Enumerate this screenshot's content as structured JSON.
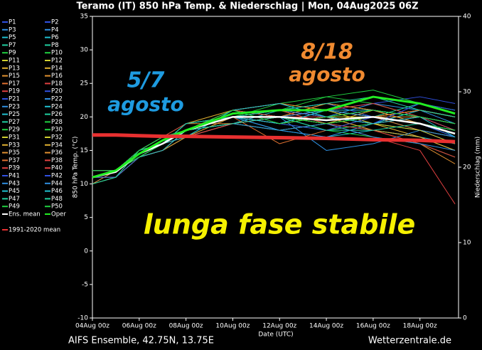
{
  "chart_data": {
    "type": "line",
    "title": "Teramo  (IT)  850 hPa Temp. & Niederschlag | Mon, 04Aug2025 06Z",
    "y_label": "850 hPa Temp. (°C)",
    "y2_label": "Niederschlag (mm)",
    "x_label": "Date (UTC)",
    "footer_left": "AIFS Ensemble, 42.75N, 13.75E",
    "footer_right": "Wetterzentrale.de",
    "annotations": [
      {
        "text": "5/7",
        "color": "#1e9be0"
      },
      {
        "text": "agosto",
        "color": "#1e9be0"
      },
      {
        "text": "8/18",
        "color": "#f08a30"
      },
      {
        "text": "agosto",
        "color": "#f08a30"
      },
      {
        "text": "lunga fase stabile",
        "color": "#f5f000"
      }
    ],
    "xlim": [
      0,
      15.65
    ],
    "ylim": [
      -10,
      35
    ],
    "y2lim": [
      0,
      40
    ],
    "xticks": [
      {
        "value": 0,
        "label": "04Aug 00z"
      },
      {
        "value": 2,
        "label": "06Aug 00z"
      },
      {
        "value": 4,
        "label": "08Aug 00z"
      },
      {
        "value": 6,
        "label": "10Aug 00z"
      },
      {
        "value": 8,
        "label": "12Aug 00z"
      },
      {
        "value": 10,
        "label": "14Aug 00z"
      },
      {
        "value": 12,
        "label": "16Aug 00z"
      },
      {
        "value": 14,
        "label": "18Aug 00z"
      }
    ],
    "yticks": [
      -10,
      -5,
      0,
      5,
      10,
      15,
      20,
      25,
      30,
      35
    ],
    "y2ticks": [
      0,
      10,
      20,
      30,
      40
    ],
    "x": [
      0,
      1,
      2,
      3,
      4,
      6,
      8,
      10,
      12,
      14,
      15.5
    ],
    "series": [
      {
        "name": "P1",
        "color": "#3050e0",
        "values": [
          11,
          12,
          15,
          16,
          18,
          20,
          21,
          20,
          19,
          20,
          18
        ]
      },
      {
        "name": "P2",
        "color": "#3050e0",
        "values": [
          11,
          12,
          14,
          15,
          17,
          19,
          20,
          21,
          20,
          18,
          16
        ]
      },
      {
        "name": "P3",
        "color": "#2f8fe0",
        "values": [
          12,
          12,
          14,
          16,
          18,
          21,
          20,
          18,
          19,
          21,
          19
        ]
      },
      {
        "name": "P4",
        "color": "#2f8fe0",
        "values": [
          11,
          12,
          15,
          17,
          18,
          20,
          19,
          20,
          22,
          21,
          20
        ]
      },
      {
        "name": "P5",
        "color": "#20c0d0",
        "values": [
          10,
          11,
          14,
          16,
          19,
          20,
          18,
          17,
          18,
          17,
          15
        ]
      },
      {
        "name": "P6",
        "color": "#20c0d0",
        "values": [
          11,
          12,
          15,
          16,
          18,
          19,
          21,
          22,
          21,
          19,
          18
        ]
      },
      {
        "name": "P7",
        "color": "#20d0a0",
        "values": [
          11,
          12,
          14,
          15,
          17,
          20,
          21,
          20,
          19,
          18,
          17
        ]
      },
      {
        "name": "P8",
        "color": "#20d0a0",
        "values": [
          12,
          12,
          15,
          16,
          18,
          21,
          20,
          19,
          20,
          22,
          21
        ]
      },
      {
        "name": "P9",
        "color": "#20d040",
        "values": [
          11,
          11,
          14,
          16,
          18,
          20,
          22,
          23,
          22,
          20,
          19
        ]
      },
      {
        "name": "P10",
        "color": "#20d040",
        "values": [
          11,
          12,
          15,
          17,
          19,
          20,
          19,
          18,
          17,
          16,
          14
        ]
      },
      {
        "name": "P11",
        "color": "#d0d030",
        "values": [
          11,
          12,
          14,
          16,
          18,
          19,
          20,
          21,
          20,
          19,
          18
        ]
      },
      {
        "name": "P12",
        "color": "#d0d030",
        "values": [
          10,
          11,
          14,
          15,
          17,
          20,
          21,
          19,
          20,
          21,
          20
        ]
      },
      {
        "name": "P13",
        "color": "#e0b030",
        "values": [
          11,
          12,
          15,
          16,
          18,
          20,
          19,
          20,
          19,
          17,
          15
        ]
      },
      {
        "name": "P14",
        "color": "#e0b030",
        "values": [
          12,
          12,
          14,
          16,
          19,
          21,
          20,
          22,
          21,
          20,
          19
        ]
      },
      {
        "name": "P15",
        "color": "#e09030",
        "values": [
          11,
          12,
          15,
          17,
          18,
          19,
          18,
          19,
          20,
          18,
          17
        ]
      },
      {
        "name": "P16",
        "color": "#e09030",
        "values": [
          11,
          11,
          14,
          15,
          17,
          20,
          21,
          20,
          18,
          16,
          13
        ]
      },
      {
        "name": "P17",
        "color": "#e07030",
        "values": [
          11,
          12,
          15,
          16,
          18,
          21,
          22,
          21,
          20,
          19,
          18
        ]
      },
      {
        "name": "P18",
        "color": "#e04040",
        "values": [
          11,
          12,
          14,
          16,
          18,
          19,
          20,
          19,
          17,
          15,
          7
        ]
      },
      {
        "name": "P19",
        "color": "#e04040",
        "values": [
          12,
          12,
          15,
          17,
          19,
          20,
          19,
          20,
          21,
          20,
          19
        ]
      },
      {
        "name": "P20",
        "color": "#3050e0",
        "values": [
          11,
          12,
          14,
          16,
          18,
          20,
          21,
          22,
          20,
          19,
          17
        ]
      },
      {
        "name": "P21",
        "color": "#3050e0",
        "values": [
          11,
          11,
          15,
          16,
          17,
          19,
          20,
          21,
          22,
          23,
          22
        ]
      },
      {
        "name": "P22",
        "color": "#2f8fe0",
        "values": [
          11,
          12,
          14,
          15,
          18,
          20,
          18,
          17,
          19,
          20,
          18
        ]
      },
      {
        "name": "P23",
        "color": "#2f8fe0",
        "values": [
          10,
          12,
          15,
          16,
          18,
          21,
          20,
          15,
          16,
          18,
          17
        ]
      },
      {
        "name": "P24",
        "color": "#20c0d0",
        "values": [
          11,
          12,
          14,
          16,
          19,
          20,
          21,
          20,
          19,
          21,
          20
        ]
      },
      {
        "name": "P25",
        "color": "#20c0d0",
        "values": [
          11,
          12,
          15,
          17,
          18,
          19,
          20,
          19,
          18,
          17,
          16
        ]
      },
      {
        "name": "P26",
        "color": "#20d0a0",
        "values": [
          12,
          12,
          14,
          16,
          18,
          20,
          19,
          21,
          20,
          19,
          18
        ]
      },
      {
        "name": "P27",
        "color": "#20d0a0",
        "values": [
          11,
          11,
          15,
          16,
          17,
          21,
          22,
          20,
          21,
          20,
          19
        ]
      },
      {
        "name": "P28",
        "color": "#20d040",
        "values": [
          11,
          12,
          14,
          15,
          18,
          20,
          21,
          23,
          24,
          22,
          21
        ]
      },
      {
        "name": "P29",
        "color": "#20d040",
        "values": [
          11,
          12,
          15,
          16,
          18,
          19,
          18,
          19,
          20,
          19,
          17
        ]
      },
      {
        "name": "P30",
        "color": "#20d040",
        "values": [
          11,
          12,
          14,
          16,
          19,
          20,
          20,
          18,
          19,
          20,
          19
        ]
      },
      {
        "name": "P31",
        "color": "#d0d030",
        "values": [
          12,
          12,
          15,
          17,
          18,
          21,
          20,
          21,
          19,
          18,
          16
        ]
      },
      {
        "name": "P32",
        "color": "#d0d030",
        "values": [
          11,
          11,
          14,
          16,
          18,
          20,
          21,
          20,
          20,
          21,
          20
        ]
      },
      {
        "name": "P33",
        "color": "#e0b030",
        "values": [
          11,
          12,
          15,
          16,
          17,
          19,
          20,
          19,
          21,
          19,
          18
        ]
      },
      {
        "name": "P34",
        "color": "#e0b030",
        "values": [
          11,
          12,
          14,
          15,
          18,
          20,
          19,
          20,
          18,
          17,
          15
        ]
      },
      {
        "name": "P35",
        "color": "#e09030",
        "values": [
          10,
          12,
          15,
          16,
          18,
          21,
          22,
          21,
          20,
          20,
          19
        ]
      },
      {
        "name": "P36",
        "color": "#e09030",
        "values": [
          11,
          12,
          14,
          16,
          19,
          19,
          20,
          22,
          21,
          19,
          18
        ]
      },
      {
        "name": "P37",
        "color": "#e07030",
        "values": [
          11,
          11,
          15,
          17,
          18,
          20,
          16,
          18,
          20,
          21,
          20
        ]
      },
      {
        "name": "P38",
        "color": "#e04040",
        "values": [
          12,
          12,
          14,
          16,
          18,
          20,
          21,
          19,
          18,
          16,
          14
        ]
      },
      {
        "name": "P39",
        "color": "#e04040",
        "values": [
          11,
          12,
          15,
          16,
          17,
          19,
          20,
          20,
          19,
          20,
          18
        ]
      },
      {
        "name": "P40",
        "color": "#e04040",
        "values": [
          11,
          12,
          14,
          15,
          18,
          21,
          20,
          21,
          22,
          20,
          19
        ]
      },
      {
        "name": "P41",
        "color": "#3050e0",
        "values": [
          11,
          12,
          15,
          16,
          18,
          20,
          19,
          18,
          20,
          19,
          17
        ]
      },
      {
        "name": "P42",
        "color": "#3050e0",
        "values": [
          11,
          11,
          14,
          16,
          19,
          20,
          21,
          20,
          19,
          22,
          21
        ]
      },
      {
        "name": "P43",
        "color": "#2f8fe0",
        "values": [
          12,
          12,
          15,
          17,
          18,
          19,
          18,
          19,
          17,
          16,
          15
        ]
      },
      {
        "name": "P44",
        "color": "#2f8fe0",
        "values": [
          11,
          12,
          14,
          16,
          18,
          20,
          20,
          21,
          20,
          19,
          18
        ]
      },
      {
        "name": "P45",
        "color": "#20c0d0",
        "values": [
          11,
          12,
          15,
          16,
          17,
          21,
          22,
          20,
          19,
          20,
          19
        ]
      },
      {
        "name": "P46",
        "color": "#20c0d0",
        "values": [
          11,
          12,
          14,
          15,
          18,
          20,
          19,
          21,
          21,
          20,
          17
        ]
      },
      {
        "name": "P47",
        "color": "#20d0a0",
        "values": [
          10,
          11,
          15,
          16,
          18,
          19,
          20,
          18,
          18,
          19,
          18
        ]
      },
      {
        "name": "P48",
        "color": "#20d0a0",
        "values": [
          11,
          12,
          14,
          16,
          19,
          20,
          21,
          22,
          23,
          21,
          20
        ]
      },
      {
        "name": "P49",
        "color": "#20d040",
        "values": [
          11,
          12,
          15,
          17,
          18,
          20,
          20,
          19,
          20,
          19,
          18
        ]
      },
      {
        "name": "P50",
        "color": "#20d040",
        "values": [
          12,
          12,
          14,
          16,
          18,
          21,
          19,
          20,
          21,
          20,
          19
        ]
      },
      {
        "name": "Ens. mean",
        "color": "#ffffff",
        "width": 2.5,
        "values": [
          11,
          11.8,
          14.5,
          16,
          18,
          20,
          20,
          19.5,
          20,
          19,
          17.5
        ]
      },
      {
        "name": "Oper",
        "color": "#22ee22",
        "width": 3,
        "values": [
          11,
          12,
          14.5,
          16.5,
          18,
          20.5,
          21,
          21,
          23,
          22,
          20.5
        ]
      },
      {
        "name": "1991-2020 mean",
        "color": "#e83030",
        "width": 5,
        "values": [
          17.3,
          17.3,
          17.2,
          17.1,
          17.1,
          17,
          16.9,
          16.8,
          16.6,
          16.5,
          16.3
        ]
      }
    ]
  }
}
